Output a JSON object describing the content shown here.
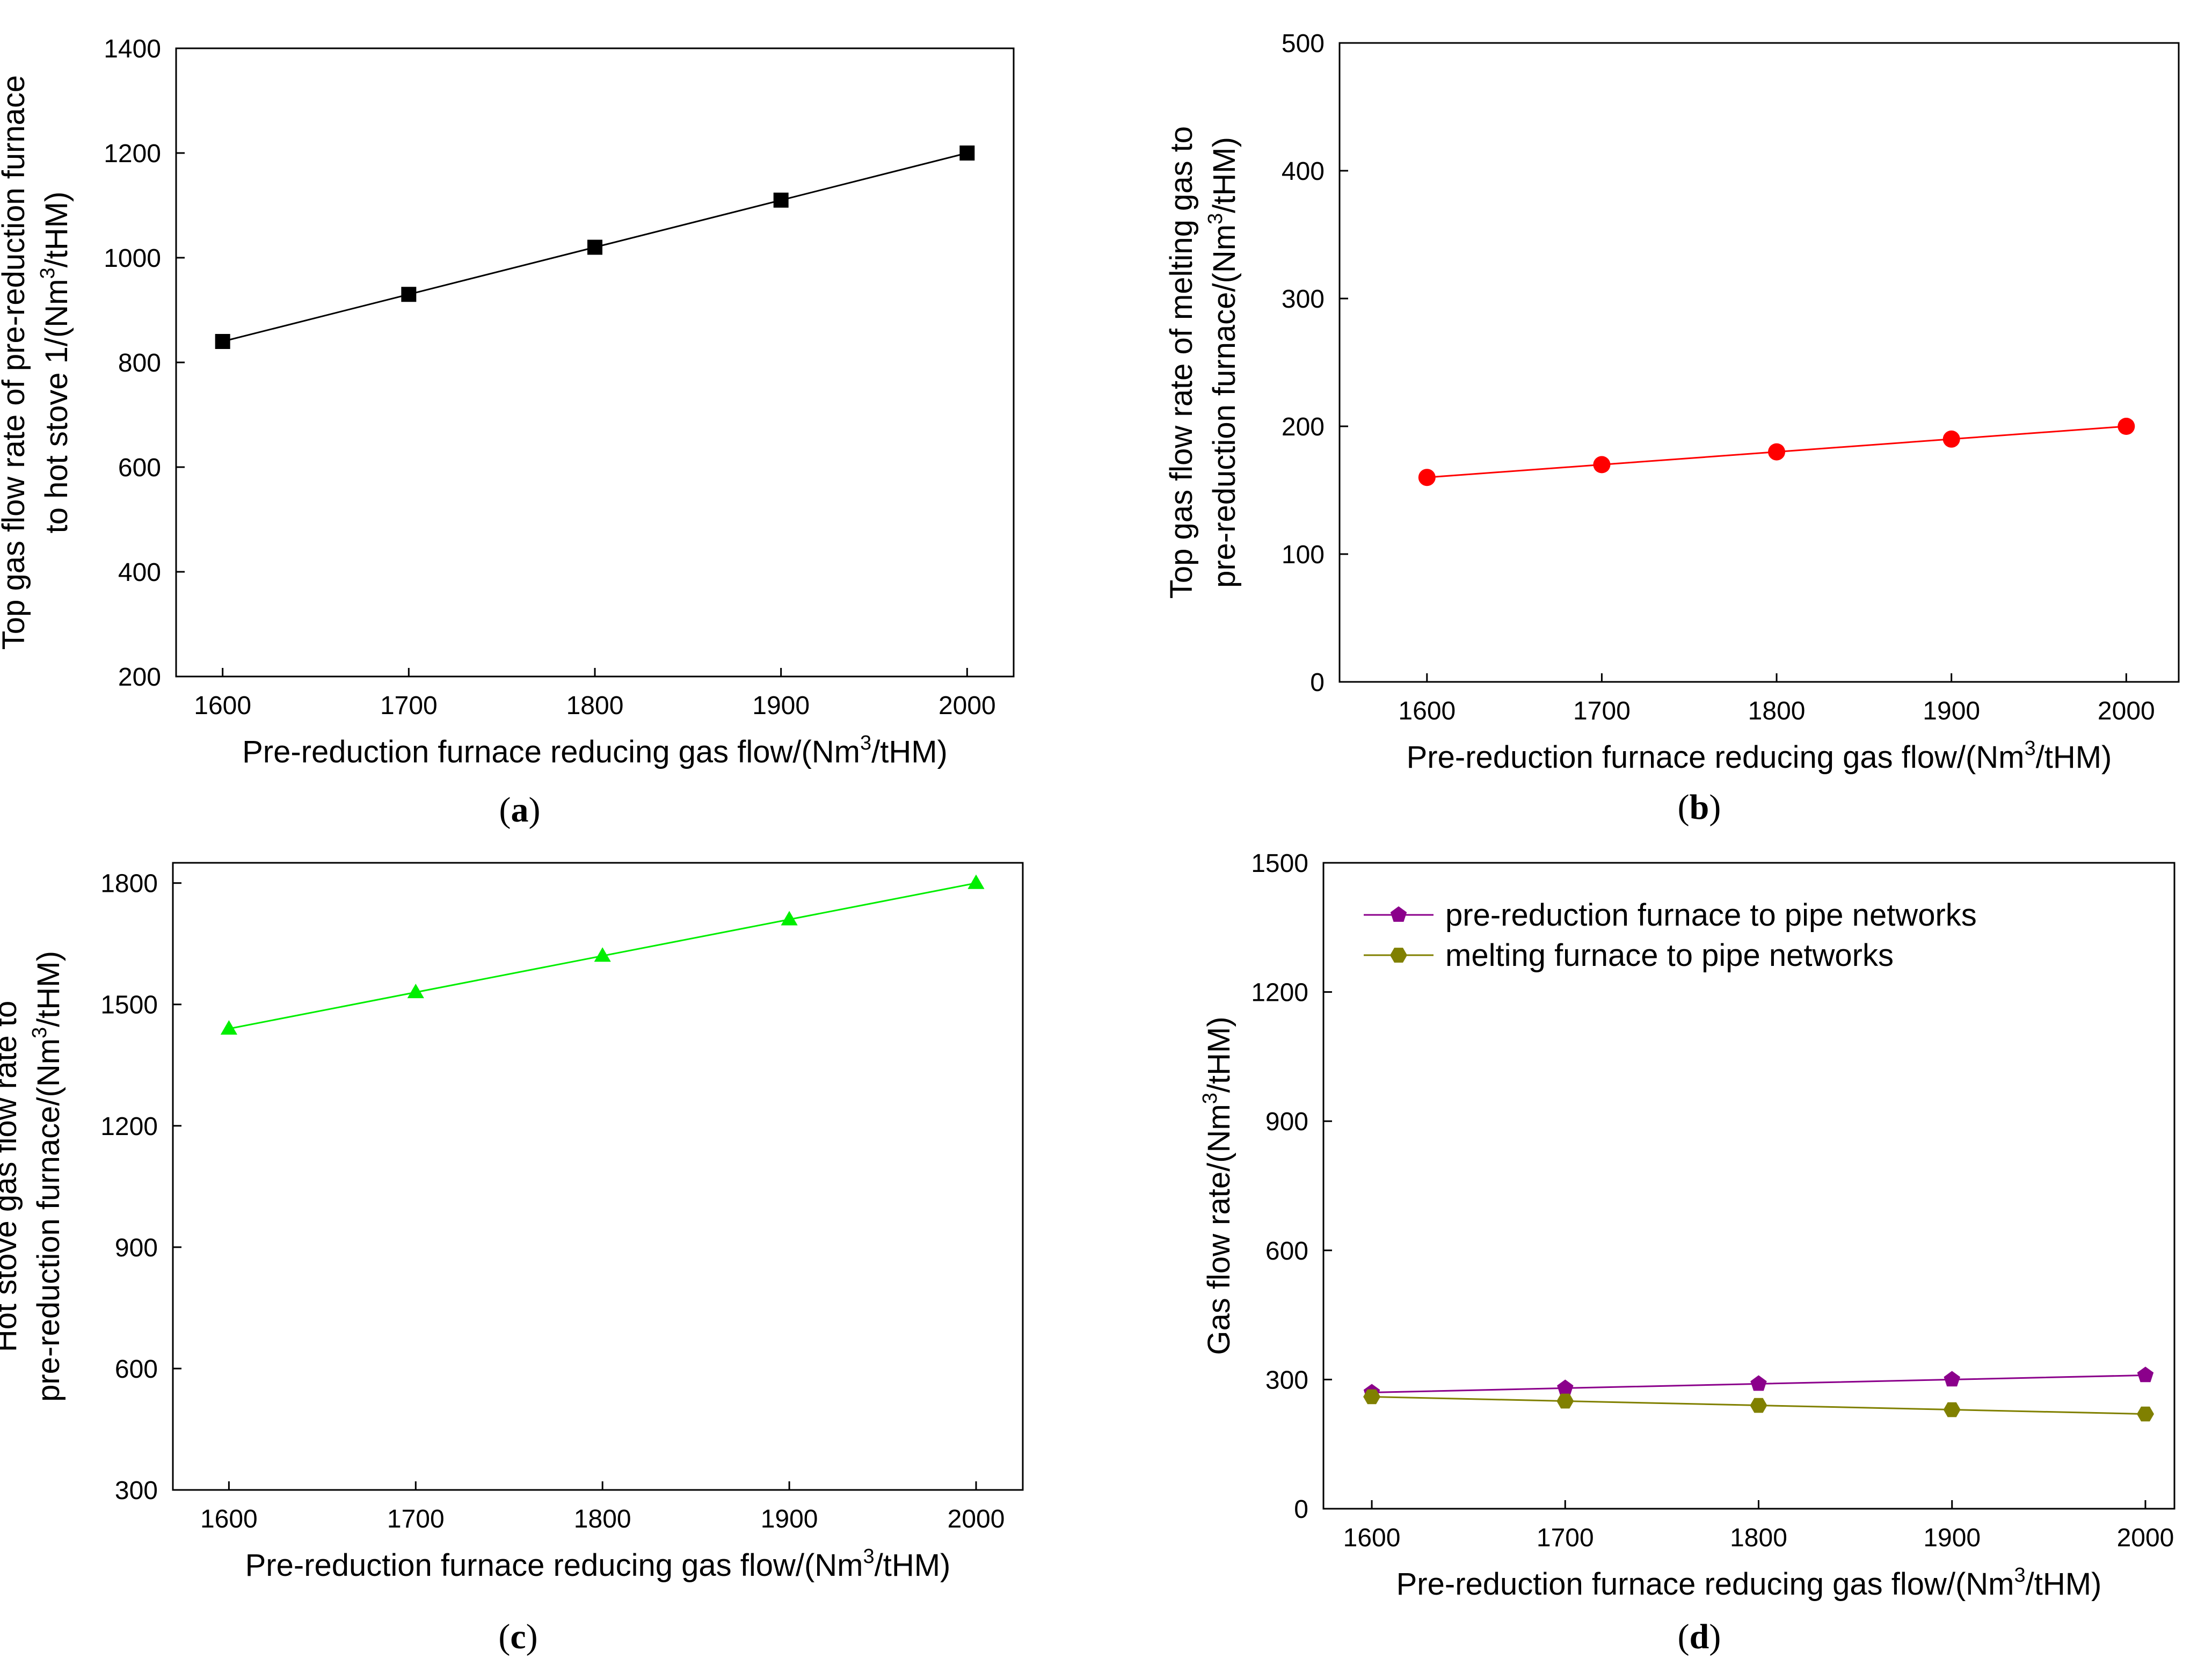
{
  "chart_data": [
    {
      "id": "a",
      "type": "line",
      "caption_letter": "a",
      "xlabel_main": "Pre-reduction furnace reducing gas flow/(Nm",
      "xlabel_sup": "3",
      "xlabel_end": "/tHM)",
      "ylabel_lines": [
        {
          "main": "Top gas flow rate of pre-reduction furnace",
          "sup": "",
          "end": ""
        },
        {
          "main": "to hot stove 1/(Nm",
          "sup": "3",
          "end": "/tHM)"
        }
      ],
      "x": [
        1600,
        1700,
        1800,
        1900,
        2000
      ],
      "xlim": [
        1575,
        2025
      ],
      "ylim": [
        200,
        1400
      ],
      "xticks": [
        1600,
        1700,
        1800,
        1900,
        2000
      ],
      "yticks": [
        200,
        400,
        600,
        800,
        1000,
        1200,
        1400
      ],
      "legend": false,
      "series": [
        {
          "name": "Top gas flow rate of pre-reduction furnace to hot stove 1",
          "values": [
            840,
            930,
            1020,
            1110,
            1200
          ],
          "marker": "square",
          "color": "#000000"
        }
      ]
    },
    {
      "id": "b",
      "type": "line",
      "caption_letter": "b",
      "xlabel_main": "Pre-reduction furnace reducing gas flow/(Nm",
      "xlabel_sup": "3",
      "xlabel_end": "/tHM)",
      "ylabel_lines": [
        {
          "main": "Top gas flow rate of melting gas to",
          "sup": "",
          "end": ""
        },
        {
          "main": "pre-reduction furnace/(Nm",
          "sup": "3",
          "end": "/tHM)"
        }
      ],
      "x": [
        1600,
        1700,
        1800,
        1900,
        2000
      ],
      "xlim": [
        1550,
        2030
      ],
      "ylim": [
        0,
        500
      ],
      "xticks": [
        1600,
        1700,
        1800,
        1900,
        2000
      ],
      "yticks": [
        0,
        100,
        200,
        300,
        400,
        500
      ],
      "legend": false,
      "series": [
        {
          "name": "Top gas flow rate of melting gas to pre-reduction furnace",
          "values": [
            160,
            170,
            180,
            190,
            200
          ],
          "marker": "circle",
          "color": "#ff0000"
        }
      ]
    },
    {
      "id": "c",
      "type": "line",
      "caption_letter": "c",
      "xlabel_main": "Pre-reduction furnace reducing gas flow/(Nm",
      "xlabel_sup": "3",
      "xlabel_end": "/tHM)",
      "ylabel_lines": [
        {
          "main": "Hot stove gas flow rate to",
          "sup": "",
          "end": ""
        },
        {
          "main": "pre-reduction furnace/(Nm",
          "sup": "3",
          "end": "/tHM)"
        }
      ],
      "x": [
        1600,
        1700,
        1800,
        1900,
        2000
      ],
      "xlim": [
        1570,
        2025
      ],
      "ylim": [
        300,
        1850
      ],
      "xticks": [
        1600,
        1700,
        1800,
        1900,
        2000
      ],
      "yticks": [
        300,
        600,
        900,
        1200,
        1500,
        1800
      ],
      "legend": false,
      "series": [
        {
          "name": "Hot stove gas flow rate to pre-reduction furnace",
          "values": [
            1440,
            1530,
            1620,
            1710,
            1800
          ],
          "marker": "triangle",
          "color": "#00ee00"
        }
      ]
    },
    {
      "id": "d",
      "type": "line",
      "caption_letter": "d",
      "xlabel_main": "Pre-reduction furnace reducing gas flow/(Nm",
      "xlabel_sup": "3",
      "xlabel_end": "/tHM)",
      "ylabel_lines": [
        {
          "main": "Gas flow rate/(Nm",
          "sup": "3",
          "end": "/tHM)"
        }
      ],
      "x": [
        1600,
        1700,
        1800,
        1900,
        2000
      ],
      "xlim": [
        1575,
        2015
      ],
      "ylim": [
        0,
        1500
      ],
      "xticks": [
        1600,
        1700,
        1800,
        1900,
        2000
      ],
      "yticks": [
        0,
        300,
        600,
        900,
        1200,
        1500
      ],
      "legend": true,
      "legend_position": "top-left",
      "series": [
        {
          "name": "pre-reduction furnace to pipe networks",
          "values": [
            270,
            280,
            290,
            300,
            310
          ],
          "marker": "pentagon",
          "color": "#8b008b"
        },
        {
          "name": "melting furnace to pipe networks",
          "values": [
            260,
            250,
            240,
            230,
            220
          ],
          "marker": "hexagon",
          "color": "#808000"
        }
      ]
    }
  ]
}
